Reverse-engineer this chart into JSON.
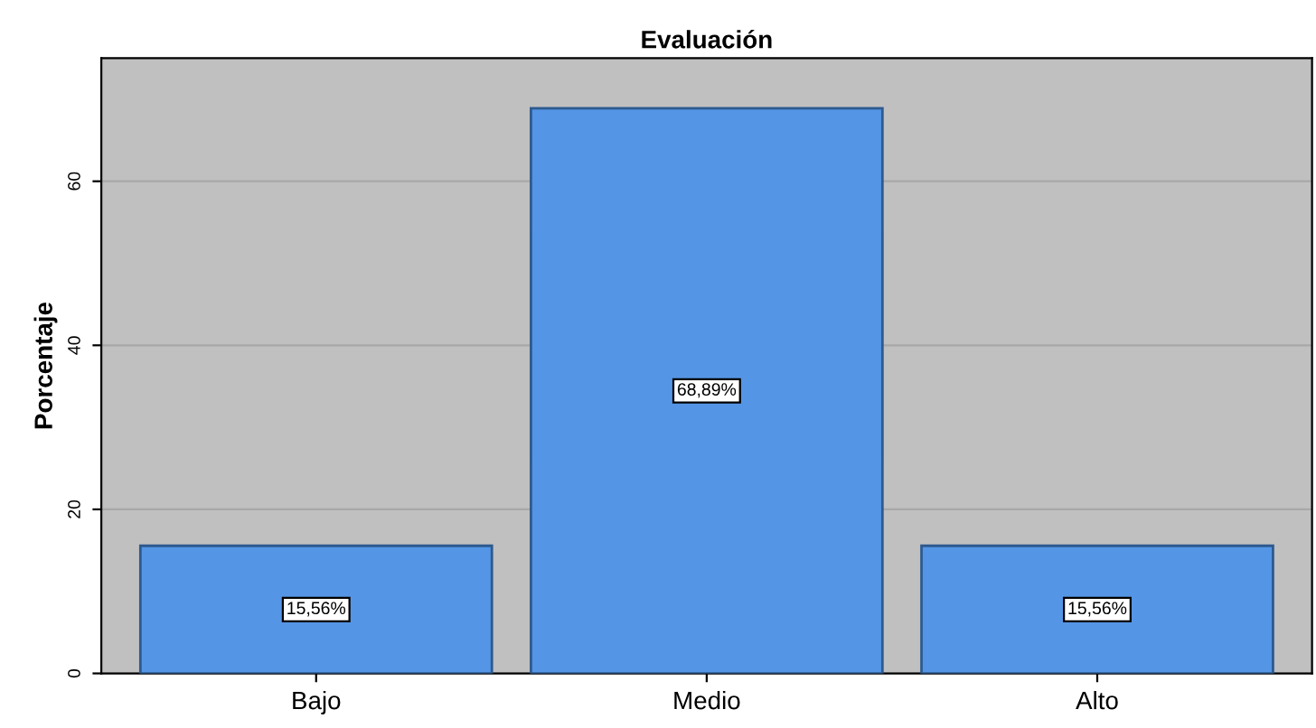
{
  "chart_data": {
    "type": "bar",
    "title": "Evaluación",
    "ylabel": "Porcentaje",
    "categories": [
      "Bajo",
      "Medio",
      "Alto"
    ],
    "values": [
      15.56,
      68.89,
      15.56
    ],
    "value_labels": [
      "15,56%",
      "68,89%",
      "15,56%"
    ],
    "color": "#5595e5",
    "ylim": [
      0,
      75
    ],
    "yticks": [
      0,
      20,
      40,
      60
    ],
    "grid": "y"
  }
}
